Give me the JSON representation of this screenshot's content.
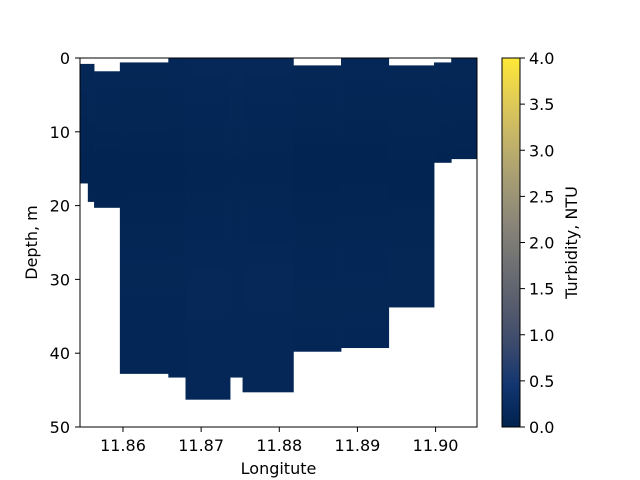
{
  "chart_data": {
    "type": "heatmap",
    "xlabel": "Longitute",
    "ylabel": "Depth, m",
    "colorbar_label": "Turbidity, NTU",
    "xlim": [
      11.8545,
      11.9053
    ],
    "ylim": [
      0,
      50
    ],
    "y_inverted": true,
    "x_ticks": [
      11.86,
      11.87,
      11.88,
      11.89,
      11.9
    ],
    "x_tick_labels": [
      "11.86",
      "11.87",
      "11.88",
      "11.89",
      "11.90"
    ],
    "y_ticks": [
      0,
      10,
      20,
      30,
      40,
      50
    ],
    "y_tick_labels": [
      "0",
      "10",
      "20",
      "30",
      "40",
      "50"
    ],
    "colorbar_range": [
      0,
      4
    ],
    "colorbar_ticks": [
      0.0,
      0.5,
      1.0,
      1.5,
      2.0,
      2.5,
      3.0,
      3.5,
      4.0
    ],
    "colorbar_tick_labels": [
      "0.0",
      "0.5",
      "1.0",
      "1.5",
      "2.0",
      "2.5",
      "3.0",
      "3.5",
      "4.0"
    ],
    "colormap": "cividis",
    "colormap_stops": [
      "#00224e",
      "#123570",
      "#3b496c",
      "#575d6d",
      "#707173",
      "#8a8678",
      "#a59c74",
      "#c3b369",
      "#e1cc55",
      "#fee838"
    ],
    "profiles": [
      {
        "lon_start": 11.8545,
        "lon_end": 11.8555,
        "depth_top": 0.8,
        "depth_bottom": 17.0,
        "turbidity": 0.1
      },
      {
        "lon_start": 11.8555,
        "lon_end": 11.8563,
        "depth_top": 0.8,
        "depth_bottom": 19.5,
        "turbidity": 0.1
      },
      {
        "lon_start": 11.8563,
        "lon_end": 11.8596,
        "depth_top": 1.8,
        "depth_bottom": 20.3,
        "turbidity": 0.1
      },
      {
        "lon_start": 11.8596,
        "lon_end": 11.8658,
        "depth_top": 0.6,
        "depth_bottom": 42.8,
        "turbidity": 0.1
      },
      {
        "lon_start": 11.8658,
        "lon_end": 11.868,
        "depth_top": 0.0,
        "depth_bottom": 43.3,
        "turbidity": 0.1
      },
      {
        "lon_start": 11.868,
        "lon_end": 11.8737,
        "depth_top": 0.0,
        "depth_bottom": 46.3,
        "turbidity": 0.12
      },
      {
        "lon_start": 11.8737,
        "lon_end": 11.8753,
        "depth_top": 0.0,
        "depth_bottom": 43.3,
        "turbidity": 0.12
      },
      {
        "lon_start": 11.8753,
        "lon_end": 11.8818,
        "depth_top": 0.0,
        "depth_bottom": 45.3,
        "turbidity": 0.12
      },
      {
        "lon_start": 11.8818,
        "lon_end": 11.8879,
        "depth_top": 1.0,
        "depth_bottom": 39.8,
        "turbidity": 0.1
      },
      {
        "lon_start": 11.8879,
        "lon_end": 11.894,
        "depth_top": 0.0,
        "depth_bottom": 39.3,
        "turbidity": 0.1
      },
      {
        "lon_start": 11.894,
        "lon_end": 11.8998,
        "depth_top": 1.0,
        "depth_bottom": 33.8,
        "turbidity": 0.1
      },
      {
        "lon_start": 11.8998,
        "lon_end": 11.902,
        "depth_top": 0.6,
        "depth_bottom": 14.2,
        "turbidity": 0.1
      },
      {
        "lon_start": 11.902,
        "lon_end": 11.9053,
        "depth_top": 0.0,
        "depth_bottom": 13.7,
        "turbidity": 0.1
      }
    ],
    "depth_profile_variation": [
      {
        "depth": 0,
        "delta": 0.02
      },
      {
        "depth": 5,
        "delta": 0.0
      },
      {
        "depth": 10,
        "delta": -0.03
      },
      {
        "depth": 15,
        "delta": -0.05
      },
      {
        "depth": 20,
        "delta": -0.04
      },
      {
        "depth": 25,
        "delta": 0.0
      },
      {
        "depth": 30,
        "delta": 0.01
      },
      {
        "depth": 40,
        "delta": 0.0
      },
      {
        "depth": 50,
        "delta": 0.0
      }
    ]
  }
}
